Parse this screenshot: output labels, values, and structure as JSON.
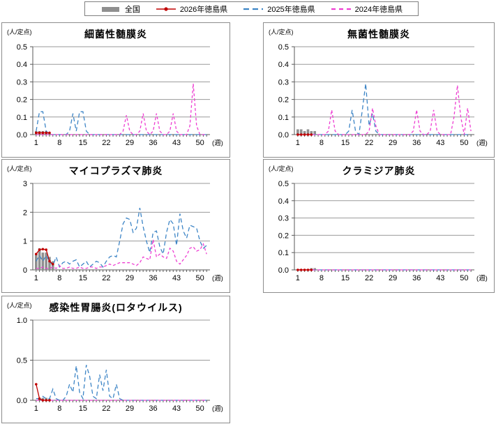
{
  "legend": {
    "items": [
      {
        "label": "全国",
        "style": "bar",
        "color": "#8f8f8f"
      },
      {
        "label": "2026年徳島県",
        "style": "line-marker",
        "color": "#c00000"
      },
      {
        "label": "2025年徳島県",
        "style": "dashed-long",
        "color": "#3d85c6"
      },
      {
        "label": "2024年徳島県",
        "style": "dashed-short",
        "color": "#ee3ed2"
      }
    ]
  },
  "axis": {
    "weeks": 52,
    "xticks": [
      1,
      8,
      15,
      22,
      29,
      36,
      43,
      50
    ],
    "xlabel": "(週)"
  },
  "chart_data": [
    {
      "type": "line",
      "title": "細菌性髄膜炎",
      "unit": "(人/定点)",
      "ymax": 0.5,
      "yticks": [
        "0.0",
        "0.1",
        "0.2",
        "0.3",
        "0.4",
        "0.5"
      ],
      "series": [
        {
          "name": "全国",
          "style": "bar",
          "color": "#8f8f8f",
          "values": [
            0.02,
            0.02,
            0.02,
            0.02,
            0.01,
            0,
            0,
            0,
            0,
            0,
            0,
            0,
            0,
            0,
            0,
            0,
            0,
            0,
            0,
            0,
            0,
            0,
            0,
            0,
            0,
            0,
            0,
            0,
            0,
            0,
            0,
            0,
            0,
            0,
            0,
            0,
            0,
            0,
            0,
            0,
            0,
            0,
            0,
            0,
            0,
            0,
            0,
            0,
            0,
            0,
            0,
            0
          ]
        },
        {
          "name": "2026年徳島県",
          "style": "line-marker",
          "color": "#c00000",
          "values": [
            0.01,
            0.01,
            0.01,
            0.01,
            0.01
          ]
        },
        {
          "name": "2025年徳島県",
          "style": "dashed-long",
          "color": "#3d85c6",
          "values": [
            0.02,
            0.13,
            0.13,
            0.02,
            0,
            0,
            0,
            0,
            0,
            0,
            0.02,
            0.12,
            0.02,
            0.13,
            0.13,
            0.02,
            0,
            0,
            0,
            0,
            0,
            0,
            0,
            0,
            0,
            0,
            0,
            0,
            0,
            0,
            0,
            0,
            0,
            0,
            0,
            0,
            0,
            0,
            0,
            0,
            0,
            0,
            0,
            0,
            0,
            0,
            0,
            0,
            0,
            0,
            0,
            0
          ]
        },
        {
          "name": "2024年徳島県",
          "style": "dashed-short",
          "color": "#ee3ed2",
          "values": [
            0,
            0,
            0,
            0,
            0,
            0,
            0,
            0,
            0,
            0,
            0,
            0,
            0,
            0,
            0,
            0,
            0,
            0,
            0,
            0,
            0,
            0,
            0,
            0,
            0,
            0,
            0.02,
            0.11,
            0.02,
            0,
            0,
            0.02,
            0.12,
            0.02,
            0,
            0.02,
            0.12,
            0.02,
            0,
            0,
            0.02,
            0.12,
            0.02,
            0,
            0,
            0,
            0.05,
            0.29,
            0.05,
            0,
            0,
            0
          ]
        }
      ]
    },
    {
      "type": "line",
      "title": "無菌性髄膜炎",
      "unit": "(人/定点)",
      "ymax": 0.5,
      "yticks": [
        "0.0",
        "0.1",
        "0.2",
        "0.3",
        "0.4",
        "0.5"
      ],
      "series": [
        {
          "name": "全国",
          "style": "bar",
          "color": "#8f8f8f",
          "values": [
            0.03,
            0.03,
            0.02,
            0.03,
            0.02,
            0.02,
            0,
            0,
            0,
            0,
            0,
            0,
            0,
            0,
            0,
            0,
            0,
            0,
            0,
            0,
            0,
            0,
            0,
            0,
            0,
            0,
            0,
            0,
            0,
            0,
            0,
            0,
            0,
            0,
            0,
            0,
            0,
            0,
            0,
            0,
            0,
            0,
            0,
            0,
            0,
            0,
            0,
            0,
            0,
            0,
            0,
            0
          ]
        },
        {
          "name": "2026年徳島県",
          "style": "line-marker",
          "color": "#c00000",
          "values": [
            0,
            0,
            0,
            0,
            0
          ]
        },
        {
          "name": "2025年徳島県",
          "style": "dashed-long",
          "color": "#3d85c6",
          "values": [
            0,
            0,
            0,
            0,
            0,
            0,
            0,
            0,
            0,
            0,
            0,
            0,
            0,
            0,
            0,
            0.02,
            0.14,
            0.02,
            0,
            0.14,
            0.29,
            0.05,
            0.12,
            0.02,
            0,
            0,
            0,
            0,
            0,
            0,
            0,
            0,
            0,
            0,
            0,
            0,
            0,
            0,
            0,
            0,
            0,
            0,
            0,
            0,
            0,
            0,
            0,
            0,
            0,
            0,
            0,
            0
          ]
        },
        {
          "name": "2024年徳島県",
          "style": "dashed-short",
          "color": "#ee3ed2",
          "values": [
            0,
            0,
            0,
            0,
            0,
            0,
            0,
            0,
            0,
            0.02,
            0.14,
            0.02,
            0,
            0,
            0,
            0,
            0,
            0,
            0,
            0,
            0,
            0.02,
            0.15,
            0.05,
            0,
            0,
            0,
            0,
            0,
            0,
            0,
            0,
            0,
            0,
            0.02,
            0.14,
            0.02,
            0,
            0,
            0.02,
            0.14,
            0.02,
            0,
            0,
            0,
            0,
            0.1,
            0.28,
            0.1,
            0,
            0.15,
            0.02
          ]
        }
      ]
    },
    {
      "type": "line",
      "title": "マイコプラズマ肺炎",
      "unit": "(人/定点)",
      "ymax": 3,
      "yticks": [
        "0",
        "1",
        "2",
        "3"
      ],
      "series": [
        {
          "name": "全国",
          "style": "bar",
          "color": "#8f8f8f",
          "values": [
            0.55,
            0.75,
            0.6,
            0.6,
            0.45,
            0.3,
            0,
            0,
            0,
            0,
            0,
            0,
            0,
            0,
            0,
            0,
            0,
            0,
            0,
            0,
            0,
            0,
            0,
            0,
            0,
            0,
            0,
            0,
            0,
            0,
            0,
            0,
            0,
            0,
            0,
            0,
            0,
            0,
            0,
            0,
            0,
            0,
            0,
            0,
            0,
            0,
            0,
            0,
            0,
            0,
            0,
            0
          ]
        },
        {
          "name": "2026年徳島県",
          "style": "line-marker",
          "color": "#c00000",
          "values": [
            0.55,
            0.7,
            0.72,
            0.7,
            0.3,
            0.2
          ]
        },
        {
          "name": "2025年徳島県",
          "style": "dashed-long",
          "color": "#3d85c6",
          "values": [
            0.3,
            0.5,
            0.3,
            0.5,
            0.3,
            0.15,
            0.45,
            0.1,
            0.25,
            0.3,
            0.2,
            0.3,
            0.35,
            0.1,
            0.2,
            0.3,
            0.1,
            0.2,
            0.3,
            0.25,
            0.1,
            0.3,
            0.45,
            0.5,
            0.45,
            1.0,
            1.6,
            1.8,
            1.75,
            1.3,
            1.45,
            2.15,
            1.5,
            1.0,
            0.6,
            1.3,
            1.35,
            0.8,
            0.55,
            1.3,
            1.75,
            1.6,
            0.85,
            1.95,
            1.35,
            1.1,
            1.55,
            1.5,
            1.45,
            1.0,
            0.75,
            0.85
          ]
        },
        {
          "name": "2024年徳島県",
          "style": "dashed-short",
          "color": "#ee3ed2",
          "values": [
            0.05,
            0.05,
            0.1,
            0.05,
            0.05,
            0.1,
            0.05,
            0.15,
            0.05,
            0.05,
            0.1,
            0.05,
            0.05,
            0.1,
            0.05,
            0.05,
            0.1,
            0.1,
            0.05,
            0.1,
            0.1,
            0.15,
            0.2,
            0.15,
            0.2,
            0.25,
            0.25,
            0.25,
            0.25,
            0.2,
            0.15,
            0.25,
            0.45,
            0.4,
            0.35,
            1.05,
            0.45,
            0.55,
            0.45,
            0.4,
            0.75,
            0.65,
            0.3,
            0.2,
            0.35,
            0.5,
            0.75,
            0.8,
            0.65,
            0.7,
            0.9,
            0.55
          ]
        }
      ]
    },
    {
      "type": "line",
      "title": "クラミジア肺炎",
      "unit": "(人/定点)",
      "ymax": 0.5,
      "yticks": [
        "0.0",
        "0.1",
        "0.2",
        "0.3",
        "0.4",
        "0.5"
      ],
      "series": [
        {
          "name": "全国",
          "style": "bar",
          "color": "#8f8f8f",
          "values": [
            0,
            0,
            0,
            0,
            0.01,
            0.01,
            0,
            0,
            0,
            0,
            0,
            0,
            0,
            0,
            0,
            0,
            0,
            0,
            0,
            0,
            0,
            0,
            0,
            0,
            0,
            0,
            0,
            0,
            0,
            0,
            0,
            0,
            0,
            0,
            0,
            0,
            0,
            0,
            0,
            0,
            0,
            0,
            0,
            0,
            0,
            0,
            0,
            0,
            0,
            0,
            0,
            0
          ]
        },
        {
          "name": "2026年徳島県",
          "style": "line-marker",
          "color": "#c00000",
          "values": [
            0,
            0,
            0,
            0,
            0
          ]
        },
        {
          "name": "2025年徳島県",
          "style": "dashed-long",
          "color": "#3d85c6",
          "values": [
            0,
            0,
            0,
            0,
            0,
            0,
            0,
            0,
            0,
            0,
            0,
            0,
            0,
            0,
            0,
            0,
            0,
            0,
            0,
            0,
            0,
            0,
            0,
            0,
            0,
            0,
            0,
            0,
            0,
            0,
            0,
            0,
            0,
            0,
            0,
            0,
            0,
            0,
            0,
            0,
            0,
            0,
            0,
            0,
            0,
            0,
            0,
            0,
            0,
            0,
            0,
            0
          ]
        },
        {
          "name": "2024年徳島県",
          "style": "dashed-short",
          "color": "#ee3ed2",
          "values": [
            0,
            0,
            0,
            0,
            0,
            0,
            0,
            0,
            0,
            0,
            0,
            0,
            0,
            0,
            0,
            0,
            0,
            0,
            0,
            0,
            0,
            0,
            0,
            0,
            0,
            0,
            0,
            0,
            0,
            0,
            0,
            0,
            0,
            0,
            0,
            0,
            0,
            0,
            0,
            0,
            0,
            0,
            0,
            0,
            0,
            0,
            0,
            0,
            0,
            0,
            0,
            0
          ]
        }
      ]
    },
    {
      "type": "line",
      "title": "感染性胃腸炎(ロタウイルス)",
      "unit": "(人/定点)",
      "ymax": 1.0,
      "yticks": [
        "0.0",
        "0.5",
        "1.0"
      ],
      "series": [
        {
          "name": "全国",
          "style": "bar",
          "color": "#8f8f8f",
          "values": [
            0,
            0.03,
            0.03,
            0.03,
            0.02,
            0,
            0,
            0,
            0,
            0,
            0,
            0,
            0,
            0,
            0,
            0,
            0,
            0,
            0,
            0,
            0,
            0,
            0,
            0,
            0,
            0,
            0,
            0,
            0,
            0,
            0,
            0,
            0,
            0,
            0,
            0,
            0,
            0,
            0,
            0,
            0,
            0,
            0,
            0,
            0,
            0,
            0,
            0,
            0,
            0,
            0,
            0
          ]
        },
        {
          "name": "2026年徳島県",
          "style": "line-marker",
          "color": "#c00000",
          "values": [
            0.2,
            0.02,
            0,
            0,
            0
          ]
        },
        {
          "name": "2025年徳島県",
          "style": "dashed-long",
          "color": "#3d85c6",
          "values": [
            0.02,
            0.02,
            0.05,
            0.02,
            0.02,
            0.14,
            0.02,
            0,
            0,
            0.05,
            0.2,
            0.1,
            0.43,
            0.1,
            0.02,
            0.44,
            0.3,
            0.05,
            0.02,
            0.32,
            0.12,
            0.38,
            0.05,
            0.02,
            0.2,
            0.02,
            0,
            0,
            0,
            0,
            0,
            0,
            0,
            0,
            0,
            0,
            0,
            0,
            0,
            0,
            0,
            0,
            0,
            0,
            0,
            0,
            0,
            0,
            0,
            0,
            0,
            0
          ]
        },
        {
          "name": "2024年徳島県",
          "style": "dashed-short",
          "color": "#ee3ed2",
          "values": [
            0,
            0,
            0,
            0,
            0,
            0,
            0,
            0,
            0,
            0,
            0,
            0,
            0,
            0,
            0,
            0,
            0,
            0,
            0,
            0,
            0,
            0,
            0,
            0,
            0,
            0,
            0,
            0,
            0,
            0,
            0,
            0,
            0,
            0,
            0,
            0,
            0,
            0,
            0,
            0,
            0,
            0,
            0,
            0,
            0,
            0,
            0,
            0,
            0,
            0,
            0,
            0
          ]
        }
      ]
    }
  ]
}
